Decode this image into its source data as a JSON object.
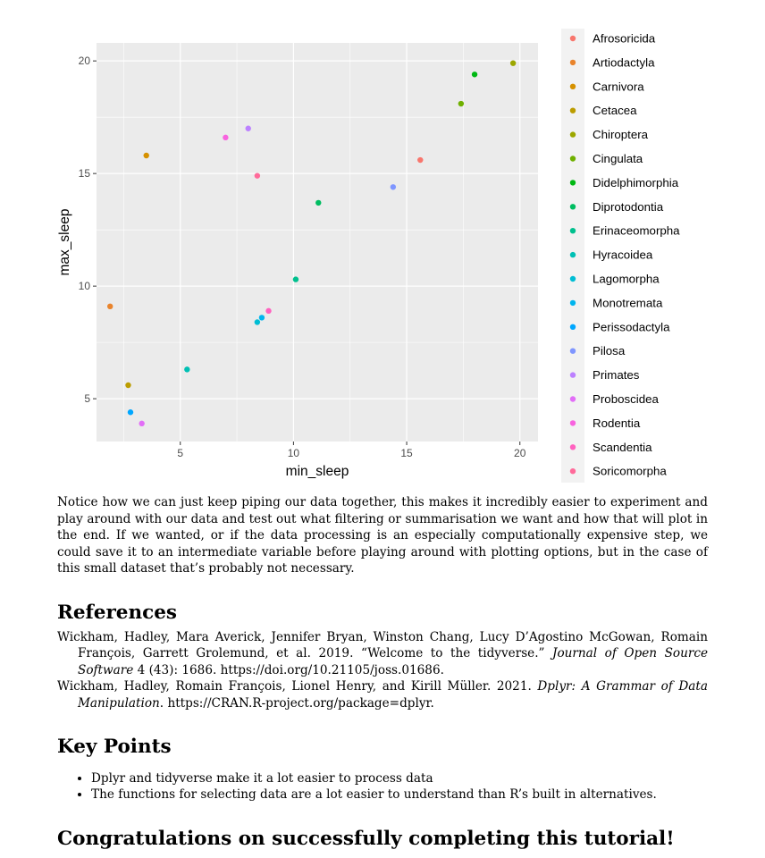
{
  "chart_data": {
    "type": "scatter",
    "xlabel": "min_sleep",
    "ylabel": "max_sleep",
    "xlim": [
      1.3,
      20.8
    ],
    "ylim": [
      3.1,
      20.8
    ],
    "x_ticks": [
      5,
      10,
      15,
      20
    ],
    "y_ticks": [
      5,
      10,
      15,
      20
    ],
    "grid": true,
    "legend_position": "right",
    "legend_items": [
      {
        "name": "Afrosoricida",
        "color": "#F8766D"
      },
      {
        "name": "Artiodactyla",
        "color": "#E9842C"
      },
      {
        "name": "Carnivora",
        "color": "#D69100"
      },
      {
        "name": "Cetacea",
        "color": "#BC9D00"
      },
      {
        "name": "Chiroptera",
        "color": "#9CA700"
      },
      {
        "name": "Cingulata",
        "color": "#6FB000"
      },
      {
        "name": "Didelphimorphia",
        "color": "#00B813"
      },
      {
        "name": "Diprotodontia",
        "color": "#00BD61"
      },
      {
        "name": "Erinaceomorpha",
        "color": "#00C08E"
      },
      {
        "name": "Hyracoidea",
        "color": "#00C0B4"
      },
      {
        "name": "Lagomorpha",
        "color": "#00BDD4"
      },
      {
        "name": "Monotremata",
        "color": "#00B5EE"
      },
      {
        "name": "Perissodactyla",
        "color": "#00A7FF"
      },
      {
        "name": "Pilosa",
        "color": "#7F96FF"
      },
      {
        "name": "Primates",
        "color": "#BC81FF"
      },
      {
        "name": "Proboscidea",
        "color": "#E26EF7"
      },
      {
        "name": "Rodentia",
        "color": "#F863DF"
      },
      {
        "name": "Scandentia",
        "color": "#FF62BF"
      },
      {
        "name": "Soricomorpha",
        "color": "#FF6A9A"
      }
    ],
    "points": [
      {
        "x": 1.9,
        "y": 9.1,
        "color": "#E9842C"
      },
      {
        "x": 3.5,
        "y": 15.8,
        "color": "#D69100"
      },
      {
        "x": 2.7,
        "y": 5.6,
        "color": "#BC9D00"
      },
      {
        "x": 19.7,
        "y": 19.9,
        "color": "#9CA700"
      },
      {
        "x": 17.4,
        "y": 18.1,
        "color": "#6FB000"
      },
      {
        "x": 18.0,
        "y": 19.4,
        "color": "#00B813"
      },
      {
        "x": 11.1,
        "y": 13.7,
        "color": "#00BD61"
      },
      {
        "x": 10.1,
        "y": 10.3,
        "color": "#00C08E"
      },
      {
        "x": 5.3,
        "y": 6.3,
        "color": "#00C0B4"
      },
      {
        "x": 8.4,
        "y": 8.4,
        "color": "#00BDD4"
      },
      {
        "x": 8.6,
        "y": 8.6,
        "color": "#00B5EE"
      },
      {
        "x": 2.8,
        "y": 4.4,
        "color": "#00A7FF"
      },
      {
        "x": 14.4,
        "y": 14.4,
        "color": "#7F96FF"
      },
      {
        "x": 8.0,
        "y": 17.0,
        "color": "#BC81FF"
      },
      {
        "x": 3.3,
        "y": 3.9,
        "color": "#E26EF7"
      },
      {
        "x": 7.0,
        "y": 16.6,
        "color": "#F863DF"
      },
      {
        "x": 8.9,
        "y": 8.9,
        "color": "#FF62BF"
      },
      {
        "x": 8.4,
        "y": 14.9,
        "color": "#FF6A9A"
      },
      {
        "x": 15.6,
        "y": 15.6,
        "color": "#F8766D"
      }
    ]
  },
  "paragraph": "Notice how we can just keep piping our data together, this makes it incredibly easier to experiment and play around with our data and test out what filtering or summarisation we want and how that will plot in the end. If we wanted, or if the data processing is an especially computationally expensive step, we could save it to an intermediate variable before playing around with plotting options, but in the case of this small dataset that’s probably not necessary.",
  "references": {
    "heading": "References",
    "items": [
      {
        "before": "Wickham, Hadley, Mara Averick, Jennifer Bryan, Winston Chang, Lucy D’Agostino McGowan, Romain François, Garrett Grolemund, et al. 2019. “Welcome to the tidyverse.” ",
        "italic": "Journal of Open Source Software",
        "after": " 4 (43): 1686. https://doi.org/10.21105/joss.01686."
      },
      {
        "before": "Wickham, Hadley, Romain François, Lionel Henry, and Kirill Müller. 2021. ",
        "italic": "Dplyr: A Grammar of Data Manipulation",
        "after": ". https://CRAN.R-project.org/package=dplyr."
      }
    ]
  },
  "key_points": {
    "heading": "Key Points",
    "items": [
      "Dplyr and tidyverse make it a lot easier to process data",
      "The functions for selecting data are a lot easier to understand than R’s built in alternatives."
    ]
  },
  "congrats_heading": "Congratulations on successfully completing this tutorial!"
}
